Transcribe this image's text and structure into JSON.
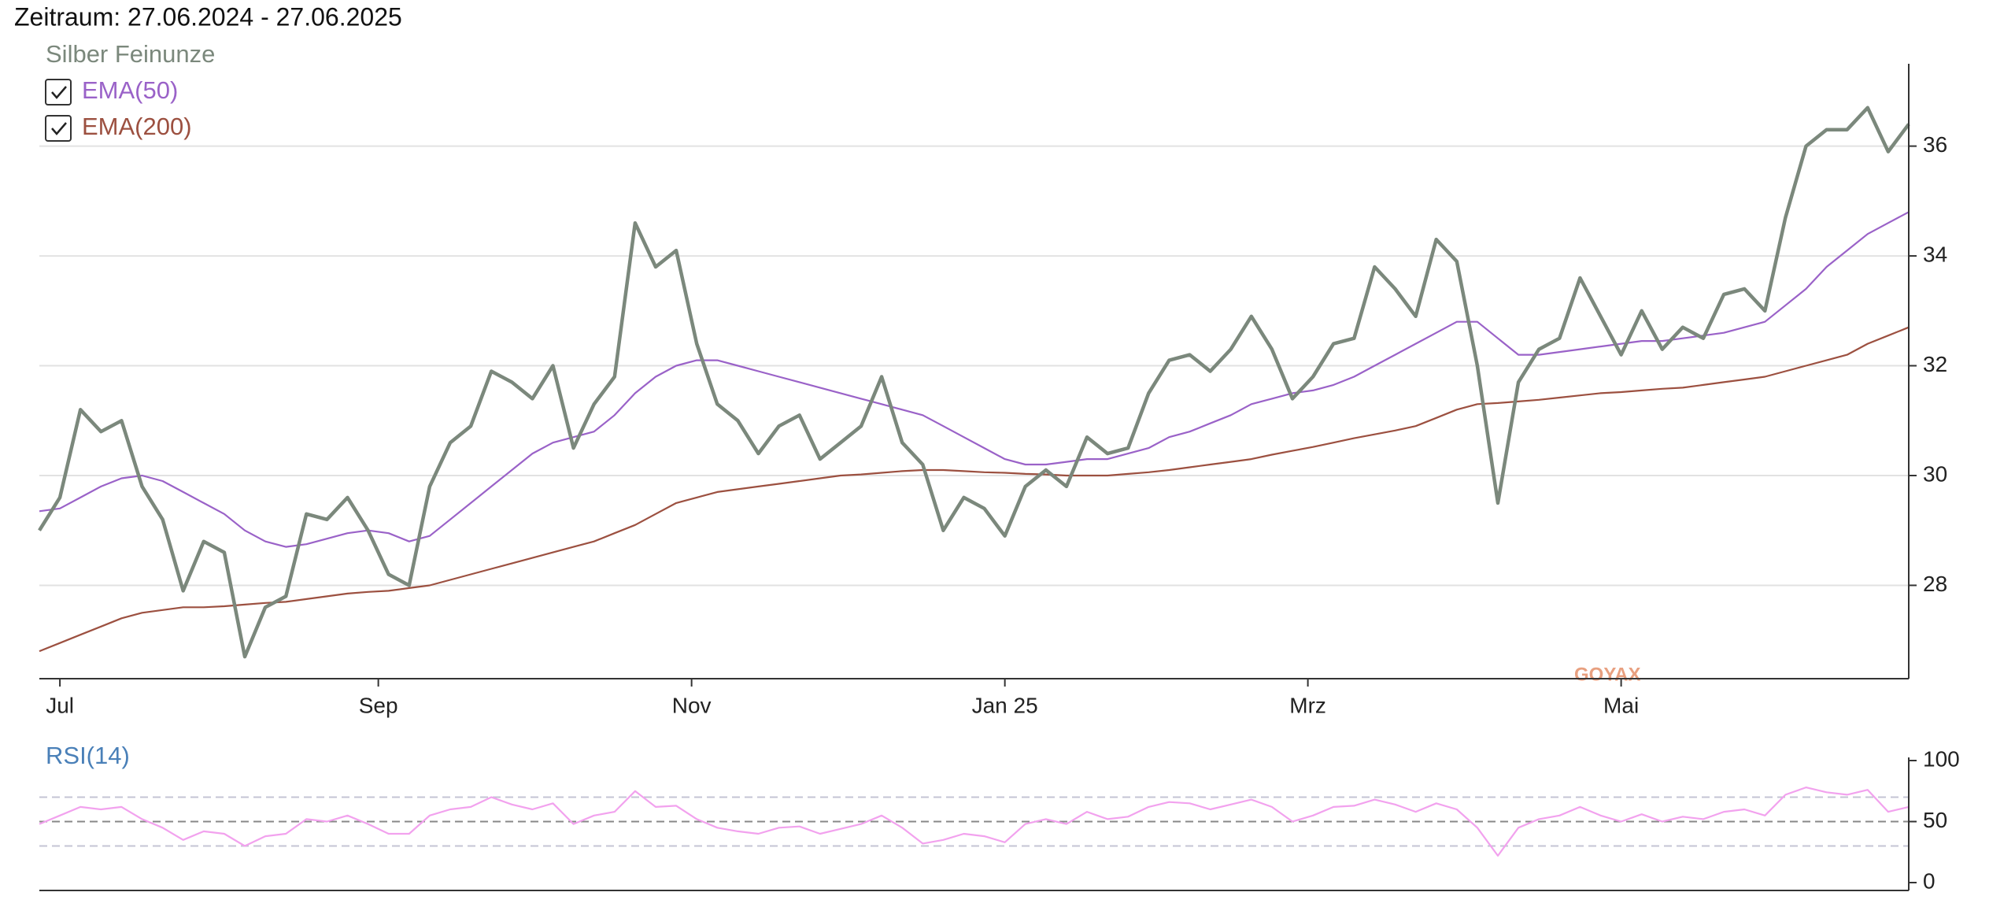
{
  "title": "Zeitraum: 27.06.2024 - 27.06.2025",
  "watermark": "GOYAX",
  "chart_data": [
    {
      "type": "line",
      "xlim": [
        0,
        91
      ],
      "xticks": [
        {
          "value": 1,
          "label": "Jul"
        },
        {
          "value": 16.5,
          "label": "Sep"
        },
        {
          "value": 31.75,
          "label": "Nov"
        },
        {
          "value": 47,
          "label": "Jan 25"
        },
        {
          "value": 61.75,
          "label": "Mrz"
        },
        {
          "value": 77,
          "label": "Mai"
        }
      ],
      "ylim": [
        26.3,
        37.5
      ],
      "yticks": [
        28,
        30,
        32,
        34,
        36
      ],
      "grid": true,
      "series": [
        {
          "name": "Silber Feinunze",
          "color": "#7b887c",
          "values": [
            29.0,
            29.6,
            31.2,
            30.8,
            31.0,
            29.8,
            29.2,
            27.9,
            28.8,
            28.6,
            26.7,
            27.6,
            27.8,
            29.3,
            29.2,
            29.6,
            29.0,
            28.2,
            28.0,
            29.8,
            30.6,
            30.9,
            31.9,
            31.7,
            31.4,
            32.0,
            30.5,
            31.3,
            31.8,
            34.6,
            33.8,
            34.1,
            32.4,
            31.3,
            31.0,
            30.4,
            30.9,
            31.1,
            30.3,
            30.6,
            30.9,
            31.8,
            30.6,
            30.2,
            29.0,
            29.6,
            29.4,
            28.9,
            29.8,
            30.1,
            29.8,
            30.7,
            30.4,
            30.5,
            31.5,
            32.1,
            32.2,
            31.9,
            32.3,
            32.9,
            32.3,
            31.4,
            31.8,
            32.4,
            32.5,
            33.8,
            33.4,
            32.9,
            34.3,
            33.9,
            32.0,
            29.5,
            31.7,
            32.3,
            32.5,
            33.6,
            32.9,
            32.2,
            33.0,
            32.3,
            32.7,
            32.5,
            33.3,
            33.4,
            33.0,
            34.7,
            36.0,
            36.3,
            36.3,
            36.7,
            35.9,
            36.4
          ]
        },
        {
          "name": "EMA(50)",
          "color": "#9a62c8",
          "checked": true,
          "values": [
            29.35,
            29.4,
            29.6,
            29.8,
            29.95,
            30.0,
            29.9,
            29.7,
            29.5,
            29.3,
            29.0,
            28.8,
            28.7,
            28.75,
            28.85,
            28.95,
            29.0,
            28.95,
            28.8,
            28.9,
            29.2,
            29.5,
            29.8,
            30.1,
            30.4,
            30.6,
            30.7,
            30.8,
            31.1,
            31.5,
            31.8,
            32.0,
            32.1,
            32.1,
            32.0,
            31.9,
            31.8,
            31.7,
            31.6,
            31.5,
            31.4,
            31.3,
            31.2,
            31.1,
            30.9,
            30.7,
            30.5,
            30.3,
            30.2,
            30.2,
            30.25,
            30.3,
            30.3,
            30.4,
            30.5,
            30.7,
            30.8,
            30.95,
            31.1,
            31.3,
            31.4,
            31.5,
            31.55,
            31.65,
            31.8,
            32.0,
            32.2,
            32.4,
            32.6,
            32.8,
            32.8,
            32.5,
            32.2,
            32.2,
            32.25,
            32.3,
            32.35,
            32.4,
            32.45,
            32.45,
            32.5,
            32.55,
            32.6,
            32.7,
            32.8,
            33.1,
            33.4,
            33.8,
            34.1,
            34.4,
            34.6,
            34.8
          ]
        },
        {
          "name": "EMA(200)",
          "color": "#9c5040",
          "checked": true,
          "values": [
            26.8,
            26.95,
            27.1,
            27.25,
            27.4,
            27.5,
            27.55,
            27.6,
            27.6,
            27.62,
            27.65,
            27.68,
            27.7,
            27.75,
            27.8,
            27.85,
            27.88,
            27.9,
            27.95,
            28.0,
            28.1,
            28.2,
            28.3,
            28.4,
            28.5,
            28.6,
            28.7,
            28.8,
            28.95,
            29.1,
            29.3,
            29.5,
            29.6,
            29.7,
            29.75,
            29.8,
            29.85,
            29.9,
            29.95,
            30.0,
            30.02,
            30.05,
            30.08,
            30.1,
            30.1,
            30.08,
            30.06,
            30.05,
            30.03,
            30.02,
            30.0,
            30.0,
            30.0,
            30.03,
            30.06,
            30.1,
            30.15,
            30.2,
            30.25,
            30.3,
            30.38,
            30.45,
            30.52,
            30.6,
            30.68,
            30.75,
            30.82,
            30.9,
            31.05,
            31.2,
            31.3,
            31.32,
            31.35,
            31.38,
            31.42,
            31.46,
            31.5,
            31.52,
            31.55,
            31.58,
            31.6,
            31.65,
            31.7,
            31.75,
            31.8,
            31.9,
            32.0,
            32.1,
            32.2,
            32.4,
            32.55,
            32.7
          ]
        }
      ]
    },
    {
      "type": "line",
      "xlim": [
        0,
        91
      ],
      "ylim": [
        0,
        100
      ],
      "yticks": [
        0,
        50,
        100
      ],
      "levels": [
        30,
        50,
        70
      ],
      "series": [
        {
          "name": "RSI(14)",
          "color": "#f2a2ee",
          "values": [
            48,
            55,
            62,
            60,
            62,
            52,
            45,
            35,
            42,
            40,
            30,
            38,
            40,
            52,
            50,
            55,
            48,
            40,
            40,
            55,
            60,
            62,
            70,
            64,
            60,
            65,
            48,
            55,
            58,
            75,
            62,
            63,
            52,
            45,
            42,
            40,
            45,
            46,
            40,
            44,
            48,
            55,
            45,
            32,
            35,
            40,
            38,
            33,
            48,
            52,
            48,
            58,
            52,
            54,
            62,
            66,
            65,
            60,
            64,
            68,
            62,
            50,
            55,
            62,
            63,
            68,
            64,
            58,
            65,
            60,
            45,
            22,
            45,
            52,
            55,
            62,
            55,
            50,
            56,
            50,
            54,
            52,
            58,
            60,
            55,
            72,
            78,
            74,
            72,
            76,
            58,
            62
          ]
        }
      ]
    }
  ]
}
